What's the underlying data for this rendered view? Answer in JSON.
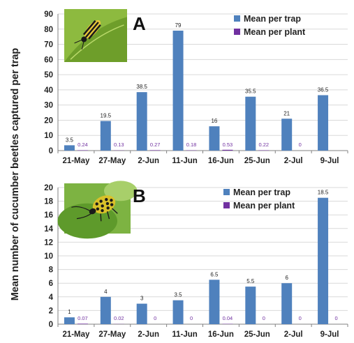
{
  "ylabel": "Mean number of cucumber beetles captured per trap",
  "colors": {
    "trap": "#4F81BD",
    "plant": "#7030A0",
    "grid": "#D9D9D9",
    "axis": "#808080"
  },
  "chart_data": [
    {
      "type": "bar",
      "panel_letter": "A",
      "image": "striped-cucumber-beetle-photo",
      "categories": [
        "21-May",
        "27-May",
        "2-Jun",
        "11-Jun",
        "16-Jun",
        "25-Jun",
        "2-Jul",
        "9-Jul"
      ],
      "series": [
        {
          "name": "Mean per trap",
          "values": [
            3.5,
            19.5,
            38.5,
            79,
            16,
            35.5,
            21,
            36.5
          ],
          "labels": [
            "3.5",
            "19.5",
            "38.5",
            "79",
            "16",
            "35.5",
            "21",
            "36.5"
          ]
        },
        {
          "name": "Mean per plant",
          "values": [
            0.24,
            0.13,
            0.27,
            0.18,
            0.53,
            0.22,
            0,
            null
          ],
          "labels": [
            "0.24",
            "0.13",
            "0.27",
            "0.18",
            "0.53",
            "0.22",
            "0",
            ""
          ]
        }
      ],
      "ylim": [
        0,
        90
      ],
      "yticks": [
        0,
        10,
        20,
        30,
        40,
        50,
        60,
        70,
        80,
        90
      ],
      "grid": true,
      "legend": "top-right"
    },
    {
      "type": "bar",
      "panel_letter": "B",
      "image": "spotted-cucumber-beetle-photo",
      "categories": [
        "21-May",
        "27-May",
        "2-Jun",
        "11-Jun",
        "16-Jun",
        "25-Jun",
        "2-Jul",
        "9-Jul"
      ],
      "series": [
        {
          "name": "Mean per trap",
          "values": [
            1,
            4,
            3,
            3.5,
            6.5,
            5.5,
            6,
            18.5
          ],
          "labels": [
            "1",
            "4",
            "3",
            "3.5",
            "6.5",
            "5.5",
            "6",
            "18.5"
          ]
        },
        {
          "name": "Mean per plant",
          "values": [
            0.07,
            0.02,
            0,
            0,
            0.04,
            0,
            0,
            0
          ],
          "labels": [
            "0.07",
            "0.02",
            "0",
            "0",
            "0.04",
            "0",
            "0",
            "0"
          ]
        }
      ],
      "ylim": [
        0,
        20
      ],
      "yticks": [
        0,
        2,
        4,
        6,
        8,
        10,
        12,
        14,
        16,
        18,
        20
      ],
      "grid": true,
      "legend": "top-right"
    }
  ]
}
